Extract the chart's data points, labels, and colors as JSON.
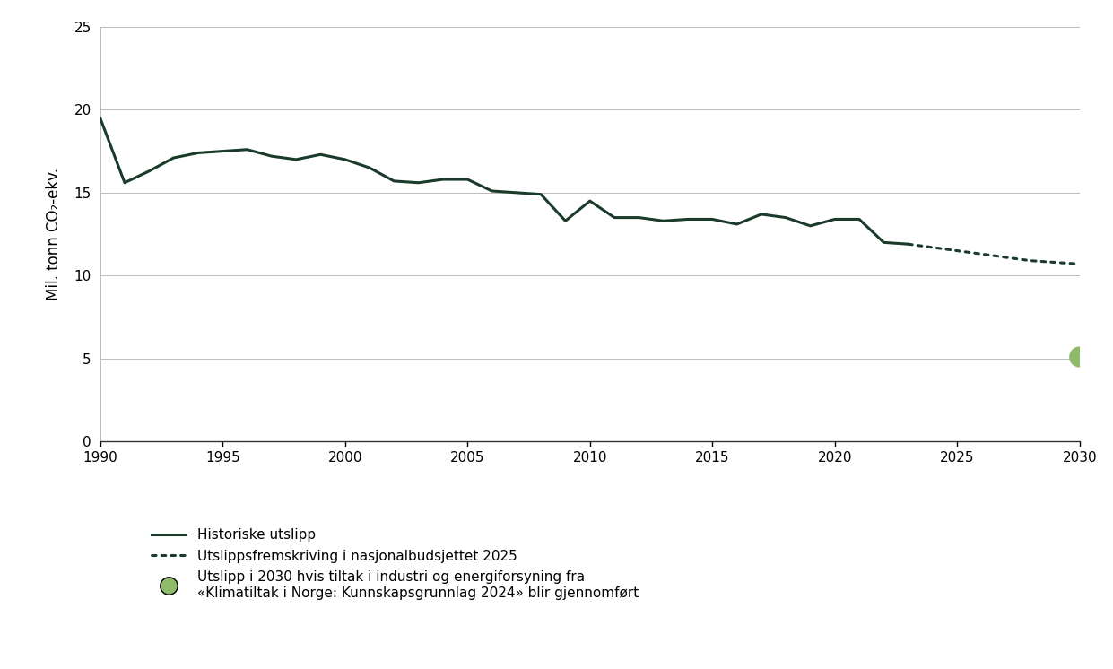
{
  "historical_years": [
    1990,
    1991,
    1992,
    1993,
    1994,
    1995,
    1996,
    1997,
    1998,
    1999,
    2000,
    2001,
    2002,
    2003,
    2004,
    2005,
    2006,
    2007,
    2008,
    2009,
    2010,
    2011,
    2012,
    2013,
    2014,
    2015,
    2016,
    2017,
    2018,
    2019,
    2020,
    2021,
    2022,
    2023
  ],
  "historical_values": [
    19.5,
    15.6,
    16.3,
    17.1,
    17.4,
    17.5,
    17.6,
    17.2,
    17.0,
    17.3,
    17.0,
    16.5,
    15.7,
    15.6,
    15.8,
    15.8,
    15.1,
    15.0,
    14.9,
    13.3,
    14.5,
    13.5,
    13.5,
    13.3,
    13.4,
    13.4,
    13.1,
    13.7,
    13.5,
    13.0,
    13.4,
    13.4,
    12.0,
    11.9
  ],
  "projection_years": [
    2023,
    2024,
    2025,
    2026,
    2027,
    2028,
    2029,
    2030
  ],
  "projection_values": [
    11.9,
    11.7,
    11.5,
    11.3,
    11.1,
    10.9,
    10.8,
    10.7
  ],
  "dot_year": 2030,
  "dot_value": 5.1,
  "line_color": "#1a3a2a",
  "dot_color": "#8fba6a",
  "ylabel": "Mil. tonn CO₂-ekv.",
  "ylim": [
    0,
    25
  ],
  "xlim": [
    1990,
    2030
  ],
  "yticks": [
    0,
    5,
    10,
    15,
    20,
    25
  ],
  "xticks": [
    1990,
    1995,
    2000,
    2005,
    2010,
    2015,
    2020,
    2025,
    2030
  ],
  "legend_solid": "Historiske utslipp",
  "legend_dashed": "Utslippsfremskriving i nasjonalbudsjettet 2025",
  "legend_dot": "Utslipp i 2030 hvis tiltak i industri og energiforsyning fra\n«Klimatiltak i Norge: Kunnskapsgrunnlag 2024» blir gjennomført",
  "background_color": "#ffffff",
  "grid_color": "#bbbbbb"
}
